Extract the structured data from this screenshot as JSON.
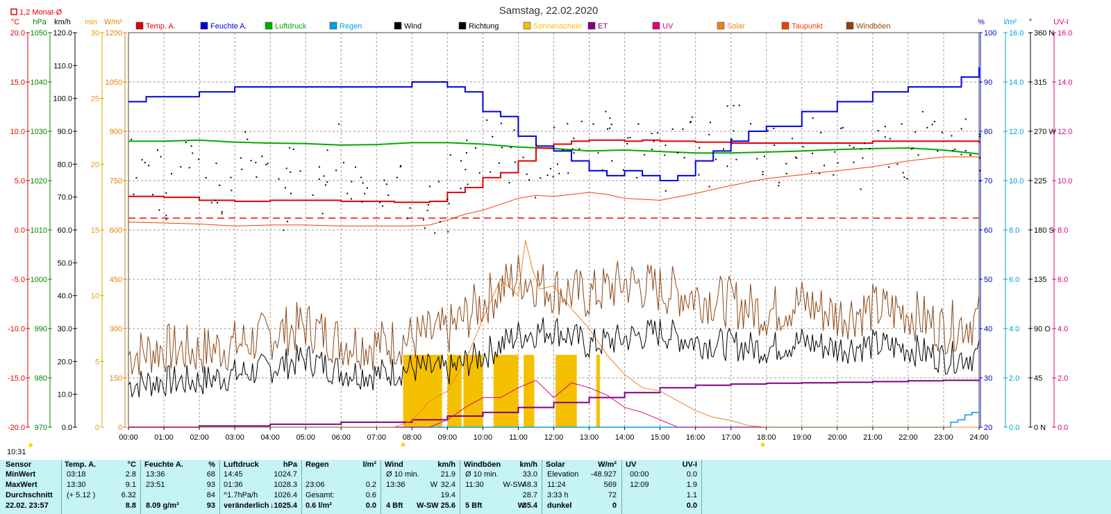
{
  "header": {
    "title": "Samstag, 22.02.2020",
    "monthly_note": "1,2 Monat-Ø"
  },
  "left_axes": [
    {
      "unit": "°C",
      "color": "#e00000",
      "ticks": [
        "20.0",
        "15.0",
        "10.0",
        "5.0",
        "0.0",
        "-5.0",
        "-10.0",
        "-15.0",
        "-20.0"
      ]
    },
    {
      "unit": "hPa",
      "color": "#008800",
      "ticks": [
        "1050",
        "1040",
        "1030",
        "1020",
        "1010",
        "1000",
        "990",
        "980",
        "970"
      ]
    },
    {
      "unit": "km/h",
      "color": "#000000",
      "ticks": [
        "120.0",
        "110.0",
        "100.0",
        "90.0",
        "80.0",
        "70.0",
        "60.0",
        "50.0",
        "40.0",
        "30.0",
        "20.0",
        "10.0",
        "0.0"
      ]
    },
    {
      "unit": "min",
      "color": "#e0a000",
      "ticks": [
        "30",
        "25",
        "20",
        "15",
        "10",
        "5",
        "0"
      ]
    },
    {
      "unit": "W/m²",
      "color": "#e08000",
      "ticks": [
        "1200",
        "1050",
        "900",
        "750",
        "600",
        "450",
        "300",
        "150",
        "0"
      ]
    }
  ],
  "right_axes": [
    {
      "unit": "%",
      "color": "#0000cc",
      "ticks": [
        "100",
        "90",
        "80",
        "70",
        "60",
        "50",
        "40",
        "30",
        "20"
      ]
    },
    {
      "unit": "l/m²",
      "color": "#00a0e0",
      "ticks": [
        "16.0",
        "14.0",
        "12.0",
        "10.0",
        "8.0",
        "6.0",
        "4.0",
        "2.0",
        "0.0"
      ]
    },
    {
      "unit": "°",
      "color": "#000000",
      "ticks": [
        "360 N",
        "315",
        "270 W",
        "225",
        "180 S",
        "135",
        "90 O",
        "45",
        "0 N"
      ]
    },
    {
      "unit": "UV-I",
      "color": "#e0007a",
      "ticks": [
        "16.0",
        "14.0",
        "12.0",
        "10.0",
        "8.0",
        "6.0",
        "4.0",
        "2.0",
        "0.0"
      ]
    }
  ],
  "legend": [
    {
      "label": "Temp. A.",
      "color": "#e00000"
    },
    {
      "label": "Feuchte A.",
      "color": "#0000dd"
    },
    {
      "label": "Luftdruck",
      "color": "#00aa00"
    },
    {
      "label": "Regen",
      "color": "#00a0e0"
    },
    {
      "label": "Wind",
      "color": "#000000"
    },
    {
      "label": "Richtung",
      "color": "#000000"
    },
    {
      "label": "Sonnenschein",
      "color": "#f0c000"
    },
    {
      "label": "ET",
      "color": "#800080"
    },
    {
      "label": "UV",
      "color": "#e0007a"
    },
    {
      "label": "Solar",
      "color": "#f08020"
    },
    {
      "label": "Taupunkt",
      "color": "#f04000"
    },
    {
      "label": "Windböen",
      "color": "#8b4513"
    }
  ],
  "chart_data": {
    "type": "line",
    "title": "Samstag, 22.02.2020",
    "x_ticks": [
      "00:00",
      "01:00",
      "02:00",
      "03:00",
      "04:00",
      "05:00",
      "06:00",
      "07:00",
      "08:00",
      "09:00",
      "10:00",
      "11:00",
      "12:00",
      "13:00",
      "14:00",
      "15:00",
      "16:00",
      "17:00",
      "18:00",
      "19:00",
      "20:00",
      "21:00",
      "22:00",
      "23:00",
      "24:00"
    ],
    "x_range_hours": [
      0,
      24
    ],
    "grid": true,
    "monthly_mean_temp_c": 1.2,
    "series": [
      {
        "name": "Temp. A.",
        "unit": "°C",
        "color": "#e00000",
        "x": [
          0,
          1,
          2,
          3,
          4,
          5,
          6,
          7,
          7.5,
          8,
          8.5,
          9,
          9.5,
          10,
          10.5,
          11,
          11.5,
          12,
          12.5,
          13,
          13.5,
          14,
          14.5,
          15,
          15.5,
          16,
          17,
          18,
          19,
          20,
          21,
          22,
          23,
          24
        ],
        "y": [
          3.4,
          3.3,
          3.0,
          2.9,
          3.0,
          3.0,
          2.9,
          2.9,
          2.8,
          2.8,
          2.9,
          3.8,
          4.3,
          5.3,
          5.8,
          7.0,
          8.3,
          8.7,
          9.0,
          9.1,
          9.1,
          9.0,
          9.1,
          9.0,
          9.0,
          8.9,
          8.8,
          8.8,
          8.8,
          8.8,
          9.0,
          9.0,
          9.0,
          8.8
        ]
      },
      {
        "name": "Feuchte A.",
        "unit": "%",
        "color": "#0000dd",
        "x": [
          0,
          0.5,
          1,
          2,
          3,
          4,
          5,
          6,
          7,
          8,
          9,
          9.5,
          10,
          10.5,
          11,
          11.5,
          12,
          12.5,
          13,
          13.5,
          14,
          14.5,
          15,
          15.5,
          16,
          16.5,
          17,
          17.5,
          18,
          19,
          20,
          21,
          22,
          23,
          23.5,
          24
        ],
        "y": [
          86,
          87,
          87,
          88,
          89,
          89,
          89,
          89,
          89,
          90,
          89,
          88,
          84,
          83,
          79,
          77,
          76,
          74,
          72,
          71,
          72,
          71,
          70,
          71,
          74,
          76,
          78,
          80,
          81,
          84,
          86,
          88,
          89,
          89,
          91,
          93
        ]
      },
      {
        "name": "Luftdruck",
        "unit": "hPa",
        "color": "#00aa00",
        "x": [
          0,
          1,
          2,
          3,
          4,
          5,
          6,
          7,
          8,
          9,
          10,
          11,
          12,
          13,
          14,
          15,
          16,
          17,
          18,
          19,
          20,
          21,
          22,
          23,
          24
        ],
        "y": [
          1028.0,
          1028.0,
          1028.2,
          1027.8,
          1027.6,
          1027.5,
          1027.2,
          1027.3,
          1027.7,
          1027.7,
          1027.4,
          1026.8,
          1026.5,
          1026.0,
          1026.2,
          1025.9,
          1025.6,
          1025.6,
          1025.8,
          1026.0,
          1026.3,
          1026.5,
          1026.6,
          1026.2,
          1025.4
        ]
      },
      {
        "name": "Taupunkt",
        "unit": "°C",
        "color": "#f04000",
        "x": [
          0,
          1,
          2,
          3,
          4,
          5,
          6,
          7,
          8,
          8.5,
          9,
          9.5,
          10,
          10.5,
          11,
          11.5,
          12,
          12.5,
          13,
          13.5,
          14,
          15,
          16,
          17,
          18,
          19,
          20,
          21,
          22,
          23,
          24
        ],
        "y": [
          0.8,
          0.7,
          0.6,
          0.4,
          0.5,
          0.5,
          0.4,
          0.4,
          0.4,
          0.5,
          1.0,
          1.6,
          2.0,
          2.6,
          3.2,
          3.5,
          3.4,
          3.6,
          3.8,
          3.6,
          3.2,
          3.0,
          3.7,
          4.5,
          5.2,
          5.6,
          6.0,
          6.4,
          7.0,
          7.4,
          7.4
        ]
      },
      {
        "name": "Wind",
        "unit": "km/h",
        "color": "#000000",
        "x": [
          0,
          1,
          2,
          3,
          4,
          5,
          6,
          7,
          8,
          9,
          10,
          11,
          12,
          13,
          14,
          15,
          16,
          17,
          18,
          19,
          20,
          21,
          22,
          23,
          24
        ],
        "y": [
          13,
          14,
          14,
          16,
          18,
          21,
          17,
          16,
          18,
          17,
          22,
          28,
          30,
          25,
          27,
          29,
          26,
          25,
          24,
          26,
          24,
          25,
          24,
          21,
          21.9
        ]
      },
      {
        "name": "Windböen",
        "unit": "km/h",
        "color": "#8b4513",
        "x": [
          0,
          1,
          2,
          3,
          4,
          5,
          6,
          7,
          8,
          9,
          10,
          11,
          12,
          13,
          14,
          15,
          16,
          17,
          18,
          19,
          20,
          21,
          22,
          23,
          24
        ],
        "y": [
          22,
          24,
          23,
          25,
          28,
          31,
          26,
          25,
          27,
          29,
          38,
          46,
          42,
          40,
          44,
          42,
          40,
          38,
          35,
          38,
          34,
          36,
          35,
          30,
          33
        ]
      },
      {
        "name": "Solar",
        "unit": "W/m²",
        "color": "#f08020",
        "x": [
          0,
          7.5,
          8,
          8.5,
          9,
          9.5,
          10,
          10.5,
          11,
          11.2,
          11.4,
          11.6,
          12,
          12.5,
          13,
          13.5,
          14,
          14.5,
          15,
          15.5,
          16,
          16.5,
          17,
          17.5,
          18,
          24
        ],
        "y": [
          0,
          0,
          20,
          80,
          110,
          200,
          330,
          450,
          400,
          569,
          480,
          420,
          430,
          360,
          300,
          220,
          160,
          120,
          110,
          80,
          50,
          30,
          20,
          5,
          0,
          0
        ]
      },
      {
        "name": "UV",
        "unit": "UV-I",
        "color": "#e0007a",
        "x": [
          0,
          8.5,
          9,
          9.5,
          10,
          10.5,
          11,
          11.5,
          12,
          12.5,
          13,
          13.5,
          14,
          14.5,
          15,
          15.5,
          24
        ],
        "y": [
          0,
          0,
          0.3,
          0.8,
          1.2,
          1.2,
          1.6,
          1.9,
          1.2,
          1.8,
          1.6,
          1.3,
          0.8,
          0.6,
          0.3,
          0,
          0
        ]
      },
      {
        "name": "ET",
        "unit": "l/m²",
        "color": "#800080",
        "x": [
          0,
          2,
          4,
          6,
          8,
          9,
          10,
          11,
          12,
          13,
          14,
          15,
          16,
          17,
          18,
          19,
          20,
          21,
          22,
          23,
          24
        ],
        "y": [
          0,
          0.05,
          0.12,
          0.2,
          0.3,
          0.45,
          0.6,
          0.8,
          1.0,
          1.2,
          1.4,
          1.6,
          1.7,
          1.75,
          1.78,
          1.8,
          1.82,
          1.85,
          1.88,
          1.9,
          1.92
        ]
      },
      {
        "name": "Regen",
        "unit": "l/m²",
        "color": "#00a0e0",
        "x": [
          0,
          23,
          23.2,
          23.4,
          23.6,
          23.8,
          24
        ],
        "y": [
          0,
          0,
          0.2,
          0.3,
          0.5,
          0.6,
          0.6
        ]
      },
      {
        "name": "Richtung",
        "unit": "°",
        "color": "#000000",
        "style": "dots",
        "x": [
          0,
          0.5,
          1,
          1.5,
          2,
          2.5,
          3,
          3.5,
          4,
          4.5,
          5,
          5.5,
          6,
          6.5,
          7,
          7.5,
          8,
          8.5,
          9,
          9.5,
          10,
          10.5,
          11,
          11.5,
          12,
          12.5,
          13,
          13.5,
          14,
          14.5,
          15,
          15.5,
          16,
          16.5,
          17,
          17.5,
          18,
          18.5,
          19,
          19.5,
          20,
          20.5,
          21,
          21.5,
          22,
          22.5,
          23,
          23.5,
          24
        ],
        "y": [
          240,
          225,
          215,
          250,
          235,
          220,
          245,
          230,
          210,
          240,
          225,
          250,
          235,
          215,
          230,
          220,
          210,
          205,
          225,
          240,
          255,
          250,
          240,
          245,
          260,
          250,
          265,
          255,
          250,
          260,
          245,
          255,
          250,
          265,
          270,
          255,
          245,
          250,
          260,
          255,
          250,
          245,
          255,
          250,
          260,
          250,
          245,
          255,
          250
        ]
      }
    ],
    "sunshine_intervals_hours": [
      [
        7.75,
        8.15
      ],
      [
        8.15,
        8.85
      ],
      [
        9.0,
        9.4
      ],
      [
        9.45,
        10.0
      ],
      [
        10.3,
        11.0
      ],
      [
        11.15,
        11.45
      ],
      [
        12.05,
        12.65
      ],
      [
        13.2,
        13.3
      ]
    ],
    "sunshine_height_min": 5.5
  },
  "current_time": "10:31",
  "stats": {
    "header": {
      "sensor": "Sensor",
      "temp": "Temp. A.",
      "temp_unit": "°C",
      "hum": "Feuchte A.",
      "hum_unit": "%",
      "press": "Luftdruck",
      "press_unit": "hPa",
      "rain": "Regen",
      "rain_unit": "l/m²",
      "wind": "Wind",
      "wind_unit": "km/h",
      "gust": "Windböen",
      "gust_unit": "km/h",
      "solar": "Solar",
      "solar_unit": "W/m²",
      "uv": "UV",
      "uv_unit": "UV-I"
    },
    "rows": [
      {
        "label": "MinWert",
        "temp_time": "03:18",
        "temp_val": "2.8",
        "hum_time": "13:36",
        "hum_val": "68",
        "press_time": "14:45",
        "press_val": "1024.7",
        "rain_time": "",
        "rain_val": "",
        "wind_time": "Ø 10 min.",
        "wind_dir": "",
        "wind_val": "21.9",
        "gust_time": "Ø 10 min.",
        "gust_dir": "",
        "gust_val": "33.0",
        "solar_time": "Elevation",
        "solar_val": "-48.927",
        "uv_time": "00:00",
        "uv_val": "0.0"
      },
      {
        "label": "MaxWert",
        "temp_time": "13:30",
        "temp_val": "9.1",
        "hum_time": "23:51",
        "hum_val": "93",
        "press_time": "01:36",
        "press_val": "1028.3",
        "rain_time": "23:06",
        "rain_val": "0.2",
        "wind_time": "13:36",
        "wind_dir": "W",
        "wind_val": "32.4",
        "gust_time": "11:30",
        "gust_dir": "W-SW",
        "gust_val": "48.3",
        "solar_time": "11:24",
        "solar_val": "569",
        "uv_time": "12:09",
        "uv_val": "1.9"
      },
      {
        "label": "Durchschnitt",
        "temp_time": "(+ 5.12 )",
        "temp_val": "6.32",
        "hum_time": "",
        "hum_val": "84",
        "press_time": "^1.7hPa/h",
        "press_val": "1026.4",
        "rain_time": "Gesamt:",
        "rain_val": "0.6",
        "wind_time": "",
        "wind_dir": "",
        "wind_val": "19.4",
        "gust_time": "",
        "gust_dir": "",
        "gust_val": "28.7",
        "solar_time": "3:33 h",
        "solar_val": "72",
        "uv_time": "",
        "uv_val": "1.1"
      },
      {
        "label": "22.02. 23:57",
        "temp_time": "",
        "temp_val": "8.8",
        "hum_time": "8.09 g/m³",
        "hum_val": "93",
        "press_time": "veränderlich",
        "press_val": "↓1025.4",
        "rain_time": "0.6 l/m²",
        "rain_val": "0.0",
        "wind_time": "4 Bft",
        "wind_dir": "W-SW",
        "wind_val": "25.6",
        "gust_time": "5 Bft",
        "gust_dir": "W",
        "gust_val": "35.4",
        "solar_time": "dunkel",
        "solar_val": "0",
        "uv_time": "",
        "uv_val": "0.0"
      }
    ]
  }
}
